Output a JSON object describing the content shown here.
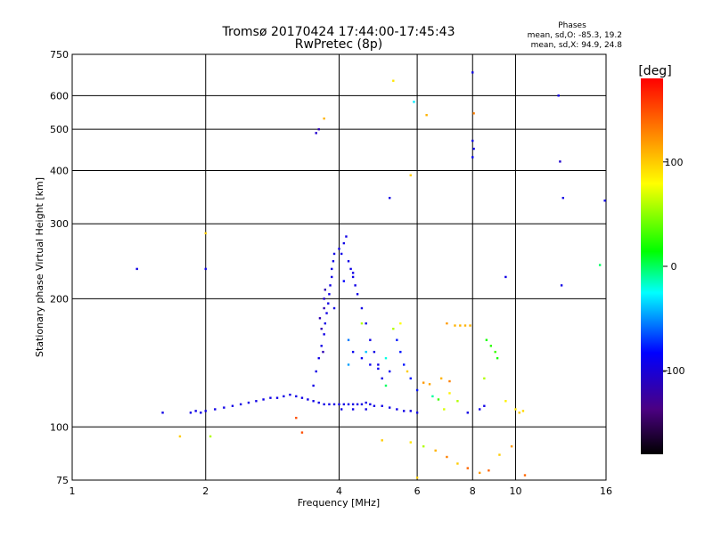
{
  "chart_data": {
    "type": "scatter",
    "title": "Tromsø 20170424 17:44:00-17:45:43",
    "subtitle": "RwPretec (8p)",
    "xlabel": "Frequency [MHz]",
    "ylabel": "Stationary phase Virtual Height [km]",
    "x_scale": "log",
    "y_scale": "log",
    "xlim": [
      1,
      16
    ],
    "ylim": [
      75,
      750
    ],
    "x_ticks": [
      1,
      2,
      4,
      6,
      8,
      10,
      16
    ],
    "y_ticks": [
      75,
      100,
      200,
      300,
      400,
      500,
      600,
      750
    ],
    "x_gridlines": [
      2,
      4,
      6,
      8,
      10
    ],
    "y_gridlines": [
      100,
      200,
      300,
      400,
      500,
      600
    ],
    "phase_info": {
      "heading": "Phases",
      "line_o": "mean, sd,O:  -85.3, 19.2",
      "line_x": "mean, sd,X:  94.9, 24.8"
    },
    "colorbar": {
      "label": "[deg]",
      "range": [
        -180,
        180
      ],
      "ticks": [
        100,
        0,
        -100
      ],
      "tick_labels": [
        "100",
        "0",
        "-100"
      ]
    },
    "points": [
      [
        1.85,
        108,
        -100
      ],
      [
        1.9,
        109,
        -100
      ],
      [
        1.95,
        108,
        -100
      ],
      [
        2.0,
        109,
        -100
      ],
      [
        2.1,
        110,
        -100
      ],
      [
        2.2,
        111,
        -100
      ],
      [
        2.3,
        112,
        -100
      ],
      [
        2.4,
        113,
        -100
      ],
      [
        2.5,
        114,
        -100
      ],
      [
        2.6,
        115,
        -100
      ],
      [
        2.7,
        116,
        -100
      ],
      [
        2.8,
        117,
        -100
      ],
      [
        2.9,
        117,
        -100
      ],
      [
        3.0,
        118,
        -100
      ],
      [
        3.1,
        119,
        -100
      ],
      [
        3.2,
        118,
        -100
      ],
      [
        3.3,
        117,
        -100
      ],
      [
        3.4,
        116,
        -100
      ],
      [
        3.5,
        115,
        -100
      ],
      [
        3.6,
        114,
        -100
      ],
      [
        3.7,
        113,
        -100
      ],
      [
        3.8,
        113,
        -100
      ],
      [
        3.9,
        113,
        -100
      ],
      [
        4.0,
        113,
        -100
      ],
      [
        4.1,
        113,
        -100
      ],
      [
        4.2,
        113,
        -100
      ],
      [
        4.3,
        113,
        -100
      ],
      [
        4.4,
        113,
        -100
      ],
      [
        4.5,
        113,
        -100
      ],
      [
        4.6,
        114,
        -100
      ],
      [
        4.7,
        113,
        -100
      ],
      [
        4.8,
        112,
        -100
      ],
      [
        5.0,
        112,
        -100
      ],
      [
        5.2,
        111,
        -100
      ],
      [
        5.4,
        110,
        -100
      ],
      [
        5.6,
        109,
        -100
      ],
      [
        5.8,
        109,
        -100
      ],
      [
        6.0,
        108,
        -100
      ],
      [
        3.5,
        125,
        -100
      ],
      [
        3.55,
        135,
        -100
      ],
      [
        3.6,
        145,
        -100
      ],
      [
        3.65,
        155,
        -100
      ],
      [
        3.7,
        165,
        -100
      ],
      [
        3.72,
        175,
        -100
      ],
      [
        3.75,
        185,
        -100
      ],
      [
        3.78,
        195,
        -100
      ],
      [
        3.8,
        205,
        -100
      ],
      [
        3.82,
        215,
        -100
      ],
      [
        3.85,
        225,
        -100
      ],
      [
        3.85,
        235,
        -100
      ],
      [
        3.88,
        245,
        -100
      ],
      [
        3.9,
        255,
        -100
      ],
      [
        3.65,
        170,
        -120
      ],
      [
        3.7,
        190,
        -120
      ],
      [
        3.72,
        210,
        -120
      ],
      [
        3.68,
        150,
        -120
      ],
      [
        3.62,
        180,
        -120
      ],
      [
        4.0,
        262,
        -100
      ],
      [
        4.05,
        255,
        -100
      ],
      [
        4.1,
        270,
        -100
      ],
      [
        4.15,
        280,
        -100
      ],
      [
        4.2,
        245,
        -100
      ],
      [
        4.25,
        235,
        -100
      ],
      [
        4.3,
        225,
        -100
      ],
      [
        4.35,
        215,
        -100
      ],
      [
        4.4,
        205,
        -100
      ],
      [
        4.5,
        190,
        -100
      ],
      [
        4.6,
        175,
        -100
      ],
      [
        4.7,
        160,
        -100
      ],
      [
        4.8,
        150,
        -100
      ],
      [
        4.9,
        140,
        -100
      ],
      [
        5.0,
        130,
        -100
      ],
      [
        4.3,
        150,
        -95
      ],
      [
        4.5,
        145,
        -95
      ],
      [
        4.7,
        140,
        -95
      ],
      [
        4.9,
        137,
        -95
      ],
      [
        5.2,
        135,
        -95
      ],
      [
        5.4,
        160,
        -85
      ],
      [
        5.5,
        150,
        -85
      ],
      [
        5.6,
        140,
        -85
      ],
      [
        5.8,
        130,
        -85
      ],
      [
        6.0,
        122,
        -85
      ],
      [
        4.2,
        160,
        -60
      ],
      [
        4.6,
        150,
        -40
      ],
      [
        5.1,
        145,
        -20
      ],
      [
        5.3,
        170,
        60
      ],
      [
        5.5,
        175,
        80
      ],
      [
        6.5,
        118,
        -10
      ],
      [
        6.7,
        116,
        30
      ],
      [
        6.9,
        110,
        70
      ],
      [
        7.1,
        120,
        85
      ],
      [
        7.4,
        115,
        60
      ],
      [
        7.0,
        175,
        120
      ],
      [
        7.3,
        173,
        110
      ],
      [
        7.5,
        173,
        110
      ],
      [
        7.7,
        173,
        110
      ],
      [
        7.9,
        173,
        110
      ],
      [
        8.6,
        160,
        20
      ],
      [
        8.8,
        155,
        25
      ],
      [
        9.0,
        150,
        30
      ],
      [
        9.1,
        145,
        20
      ],
      [
        8.5,
        130,
        60
      ],
      [
        9.5,
        115,
        85
      ],
      [
        10.0,
        110,
        90
      ],
      [
        10.2,
        108,
        100
      ],
      [
        10.4,
        109,
        95
      ],
      [
        8.3,
        110,
        -100
      ],
      [
        8.5,
        112,
        -100
      ],
      [
        7.8,
        108,
        -100
      ],
      [
        3.55,
        490,
        -110
      ],
      [
        3.6,
        500,
        -120
      ],
      [
        3.7,
        530,
        110
      ],
      [
        5.3,
        650,
        90
      ],
      [
        5.9,
        580,
        -30
      ],
      [
        6.3,
        540,
        110
      ],
      [
        8.0,
        680,
        -100
      ],
      [
        8.05,
        545,
        130
      ],
      [
        8.0,
        470,
        -100
      ],
      [
        8.05,
        450,
        -100
      ],
      [
        8.0,
        430,
        -90
      ],
      [
        5.8,
        390,
        100
      ],
      [
        5.2,
        345,
        -100
      ],
      [
        12.5,
        600,
        -100
      ],
      [
        12.6,
        420,
        -110
      ],
      [
        12.8,
        345,
        -100
      ],
      [
        15.9,
        340,
        -100
      ],
      [
        15.5,
        240,
        0
      ],
      [
        12.7,
        215,
        -100
      ],
      [
        9.5,
        225,
        -100
      ],
      [
        1.4,
        235,
        -100
      ],
      [
        2.0,
        235,
        -100
      ],
      [
        2.0,
        285,
        100
      ],
      [
        1.6,
        108,
        -100
      ],
      [
        1.75,
        95,
        100
      ],
      [
        2.05,
        95,
        60
      ],
      [
        3.3,
        97,
        150
      ],
      [
        5.0,
        93,
        100
      ],
      [
        5.8,
        92,
        90
      ],
      [
        6.2,
        90,
        60
      ],
      [
        6.6,
        88,
        110
      ],
      [
        7.0,
        85,
        130
      ],
      [
        7.4,
        82,
        100
      ],
      [
        7.8,
        80,
        140
      ],
      [
        8.3,
        78,
        120
      ],
      [
        8.7,
        79,
        140
      ],
      [
        9.2,
        86,
        100
      ],
      [
        9.8,
        90,
        120
      ],
      [
        10.5,
        77,
        140
      ],
      [
        6.0,
        76,
        100
      ],
      [
        4.2,
        140,
        -50
      ],
      [
        4.5,
        175,
        60
      ],
      [
        5.1,
        125,
        0
      ],
      [
        5.7,
        135,
        100
      ],
      [
        6.2,
        127,
        120
      ],
      [
        6.4,
        126,
        115
      ],
      [
        6.8,
        130,
        110
      ],
      [
        7.1,
        128,
        130
      ],
      [
        3.7,
        200,
        -110
      ],
      [
        3.9,
        190,
        -100
      ],
      [
        4.1,
        220,
        -90
      ],
      [
        4.3,
        230,
        -100
      ],
      [
        4.05,
        110,
        -100
      ],
      [
        4.3,
        110,
        -100
      ],
      [
        4.6,
        110,
        -100
      ],
      [
        3.2,
        105,
        150
      ]
    ]
  }
}
